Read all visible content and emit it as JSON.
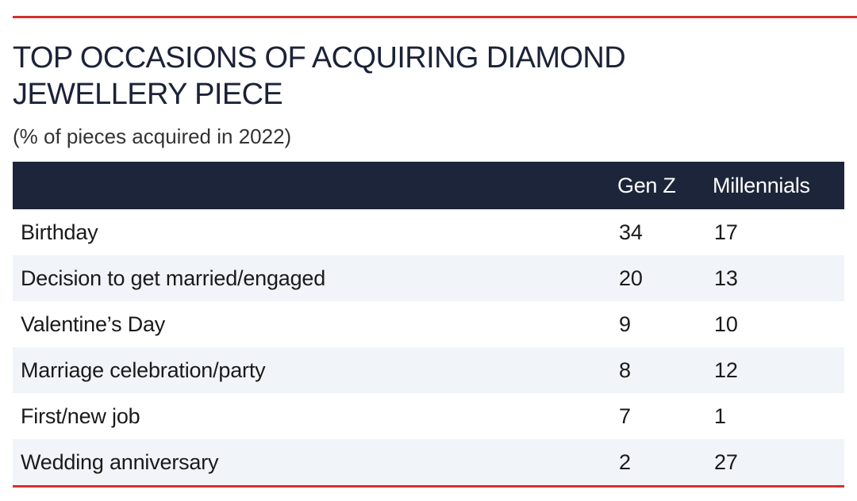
{
  "colors": {
    "accent_rule": "#d2322d",
    "header_background": "#1c2539",
    "stripe_background": "#f1f4f8",
    "title_color": "#1b2238"
  },
  "chart_data": {
    "type": "table",
    "title": "TOP OCCASIONS OF ACQUIRING DIAMOND JEWELLERY PIECE",
    "subtitle": "(% of pieces acquired in 2022)",
    "columns": [
      "",
      "Gen Z",
      "Millennials"
    ],
    "rows": [
      {
        "occasion": "Birthday",
        "gen_z": "34",
        "millennials": "17"
      },
      {
        "occasion": "Decision to get married/engaged",
        "gen_z": "20",
        "millennials": "13"
      },
      {
        "occasion": "Valentine’s Day",
        "gen_z": "9",
        "millennials": "10"
      },
      {
        "occasion": "Marriage celebration/party",
        "gen_z": "8",
        "millennials": "12"
      },
      {
        "occasion": "First/new job",
        "gen_z": "7",
        "millennials": "1"
      },
      {
        "occasion": "Wedding anniversary",
        "gen_z": "2",
        "millennials": "27"
      }
    ]
  }
}
